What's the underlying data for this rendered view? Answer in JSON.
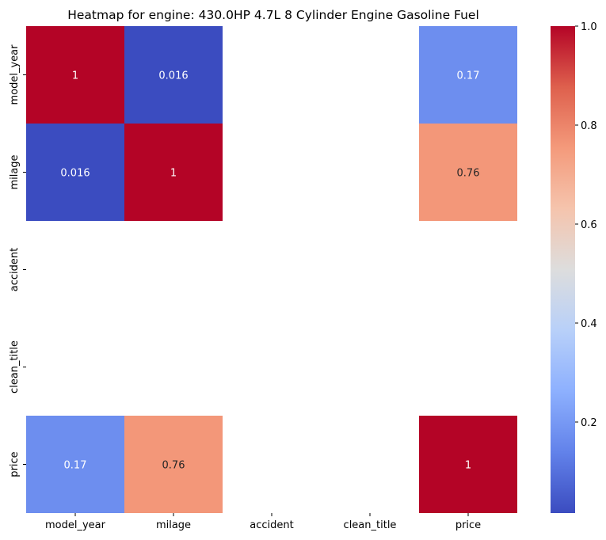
{
  "chart_data": {
    "type": "heatmap",
    "title": "Heatmap for engine: 430.0HP 4.7L 8 Cylinder Engine Gasoline Fuel",
    "x_labels": [
      "model_year",
      "milage",
      "accident",
      "clean_title",
      "price"
    ],
    "y_labels": [
      "model_year",
      "milage",
      "accident",
      "clean_title",
      "price"
    ],
    "values": [
      [
        1,
        0.016,
        null,
        null,
        0.17
      ],
      [
        0.016,
        1,
        null,
        null,
        0.76
      ],
      [
        null,
        null,
        null,
        null,
        null
      ],
      [
        null,
        null,
        null,
        null,
        null
      ],
      [
        0.17,
        0.76,
        null,
        null,
        1
      ]
    ],
    "annotations": [
      [
        "1",
        "0.016",
        "",
        "",
        "0.17"
      ],
      [
        "0.016",
        "1",
        "",
        "",
        "0.76"
      ],
      [
        "",
        "",
        "",
        "",
        ""
      ],
      [
        "",
        "",
        "",
        "",
        ""
      ],
      [
        "0.17",
        "0.76",
        "",
        "",
        "1"
      ]
    ],
    "colormap": "coolwarm",
    "colorbar": {
      "range": [
        0.016,
        1.0
      ],
      "ticks": [
        0.2,
        0.4,
        0.6,
        0.8,
        1.0
      ],
      "tick_labels": [
        "0.2",
        "0.4",
        "0.6",
        "0.8",
        "1.0"
      ]
    }
  }
}
